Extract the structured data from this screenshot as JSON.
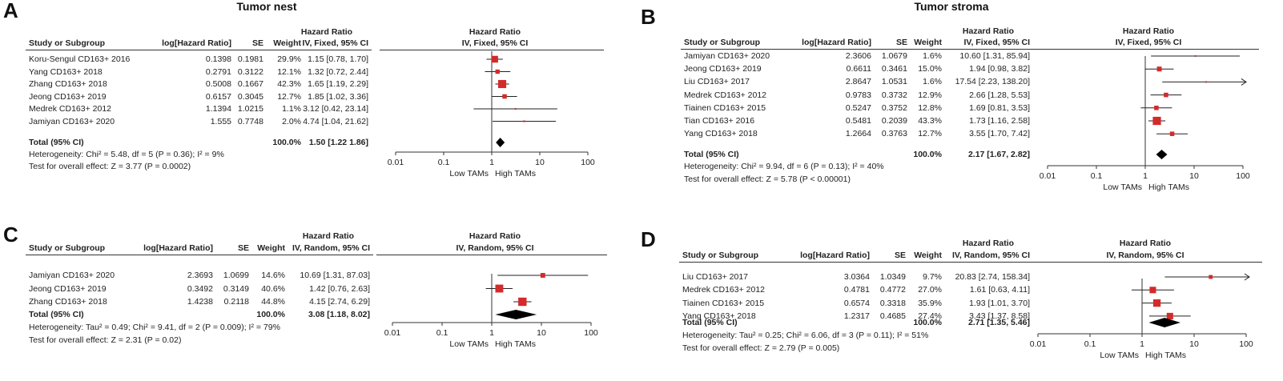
{
  "colors": {
    "box": "#d42a2a",
    "diamond": "#000000",
    "text": "#222222"
  },
  "chart_data": [
    {
      "id": "A",
      "letter": "A",
      "title": "Tumor nest",
      "type": "forest",
      "col_study": "Study or Subgroup",
      "col_loghr": "log[Hazard Ratio]",
      "col_se": "SE",
      "col_weight": "Weight",
      "col_hr_top": "Hazard Ratio",
      "col_hr_method": "IV, Fixed, 95% CI",
      "plot_title_top": "Hazard Ratio",
      "plot_title_method": "IV, Fixed, 95% CI",
      "studies": [
        {
          "name": "Koru-Sengul CD163+ 2016",
          "loghr": "0.1398",
          "se": "0.1981",
          "weight": "29.9%",
          "ci_text": "1.15 [0.78, 1.70]",
          "hr": 1.15,
          "lo": 0.78,
          "hi": 1.7,
          "w": 29.9
        },
        {
          "name": "Yang CD163+ 2018",
          "loghr": "0.2791",
          "se": "0.3122",
          "weight": "12.1%",
          "ci_text": "1.32 [0.72, 2.44]",
          "hr": 1.32,
          "lo": 0.72,
          "hi": 2.44,
          "w": 12.1
        },
        {
          "name": "Zhang CD163+ 2018",
          "loghr": "0.5008",
          "se": "0.1667",
          "weight": "42.3%",
          "ci_text": "1.65 [1.19, 2.29]",
          "hr": 1.65,
          "lo": 1.19,
          "hi": 2.29,
          "w": 42.3
        },
        {
          "name": "Jeong CD163+ 2019",
          "loghr": "0.6157",
          "se": "0.3045",
          "weight": "12.7%",
          "ci_text": "1.85 [1.02, 3.36]",
          "hr": 1.85,
          "lo": 1.02,
          "hi": 3.36,
          "w": 12.7
        },
        {
          "name": "Medrek CD163+ 2012",
          "loghr": "1.1394",
          "se": "1.0215",
          "weight": "1.1%",
          "ci_text": "3.12 [0.42, 23.14]",
          "hr": 3.12,
          "lo": 0.42,
          "hi": 23.14,
          "w": 1.1
        },
        {
          "name": "Jamiyan CD163+ 2020",
          "loghr": "1.555",
          "se": "0.7748",
          "weight": "2.0%",
          "ci_text": "4.74 [1.04, 21.62]",
          "hr": 4.74,
          "lo": 1.04,
          "hi": 21.62,
          "w": 2.0
        }
      ],
      "total": {
        "label": "Total (95% CI)",
        "weight": "100.0%",
        "ci_text": "1.50 [1.22 1.86]",
        "hr": 1.5,
        "lo": 1.22,
        "hi": 1.86
      },
      "heterogeneity": "Heterogeneity: Chi² = 5.48, df = 5 (P = 0.36); I² = 9%",
      "overall": "Test for overall effect: Z = 3.77 (P = 0.0002)",
      "axis": {
        "scale": "log",
        "ticks": [
          0.01,
          0.1,
          1,
          10,
          100
        ],
        "tick_labels": [
          "0.01",
          "0.1",
          "1",
          "10",
          "100"
        ],
        "label_left": "Low TAMs",
        "label_right": "High TAMs"
      }
    },
    {
      "id": "B",
      "letter": "B",
      "title": "Tumor stroma",
      "type": "forest",
      "col_study": "Study or Subgroup",
      "col_loghr": "log[Hazard Ratio]",
      "col_se": "SE",
      "col_weight": "Weight",
      "col_hr_top": "Hazard Ratio",
      "col_hr_method": "IV, Fixed, 95% CI",
      "plot_title_top": "Hazard Ratio",
      "plot_title_method": "IV, Fixed, 95% CI",
      "studies": [
        {
          "name": "Jamiyan CD163+ 2020",
          "loghr": "2.3606",
          "se": "1.0679",
          "weight": "1.6%",
          "ci_text": "10.60 [1.31, 85.94]",
          "hr": 10.6,
          "lo": 1.31,
          "hi": 85.94,
          "w": 1.6
        },
        {
          "name": "Jeong CD163+ 2019",
          "loghr": "0.6611",
          "se": "0.3461",
          "weight": "15.0%",
          "ci_text": "1.94 [0.98, 3.82]",
          "hr": 1.94,
          "lo": 0.98,
          "hi": 3.82,
          "w": 15.0
        },
        {
          "name": "Liu CD163+ 2017",
          "loghr": "2.8647",
          "se": "1.0531",
          "weight": "1.6%",
          "ci_text": "17.54 [2.23, 138.20]",
          "hr": 17.54,
          "lo": 2.23,
          "hi": 138.2,
          "w": 1.6
        },
        {
          "name": "Medrek CD163+ 2012",
          "loghr": "0.9783",
          "se": "0.3732",
          "weight": "12.9%",
          "ci_text": "2.66 [1.28, 5.53]",
          "hr": 2.66,
          "lo": 1.28,
          "hi": 5.53,
          "w": 12.9
        },
        {
          "name": "Tiainen CD163+ 2015",
          "loghr": "0.5247",
          "se": "0.3752",
          "weight": "12.8%",
          "ci_text": "1.69 [0.81, 3.53]",
          "hr": 1.69,
          "lo": 0.81,
          "hi": 3.53,
          "w": 12.8
        },
        {
          "name": "Tian CD163+ 2016",
          "loghr": "0.5481",
          "se": "0.2039",
          "weight": "43.3%",
          "ci_text": "1.73 [1.16, 2.58]",
          "hr": 1.73,
          "lo": 1.16,
          "hi": 2.58,
          "w": 43.3
        },
        {
          "name": "Yang CD163+ 2018",
          "loghr": "1.2664",
          "se": "0.3763",
          "weight": "12.7%",
          "ci_text": "3.55 [1.70, 7.42]",
          "hr": 3.55,
          "lo": 1.7,
          "hi": 7.42,
          "w": 12.7
        }
      ],
      "total": {
        "label": "Total (95% CI)",
        "weight": "100.0%",
        "ci_text": "2.17 [1.67, 2.82]",
        "hr": 2.17,
        "lo": 1.67,
        "hi": 2.82
      },
      "heterogeneity": "Heterogeneity: Chi² = 9.94, df = 6 (P = 0.13); I² = 40%",
      "overall": "Test for overall effect: Z = 5.78 (P < 0.00001)",
      "axis": {
        "scale": "log",
        "ticks": [
          0.01,
          0.1,
          1,
          10,
          100
        ],
        "tick_labels": [
          "0.01",
          "0.1",
          "1",
          "10",
          "100"
        ],
        "label_left": "Low TAMs",
        "label_right": "High TAMs"
      }
    },
    {
      "id": "C",
      "letter": "C",
      "title": "",
      "type": "forest",
      "col_study": "Study or Subgroup",
      "col_loghr": "log[Hazard Ratio]",
      "col_se": "SE",
      "col_weight": "Weight",
      "col_hr_top": "Hazard Ratio",
      "col_hr_method": "IV, Random, 95% CI",
      "plot_title_top": "Hazard Ratio",
      "plot_title_method": "IV, Random, 95% CI",
      "studies": [
        {
          "name": "Jamiyan CD163+ 2020",
          "loghr": "2.3693",
          "se": "1.0699",
          "weight": "14.6%",
          "ci_text": "10.69 [1.31, 87.03]",
          "hr": 10.69,
          "lo": 1.31,
          "hi": 87.03,
          "w": 14.6
        },
        {
          "name": "Jeong CD163+ 2019",
          "loghr": "0.3492",
          "se": "0.3149",
          "weight": "40.6%",
          "ci_text": "1.42 [0.76, 2.63]",
          "hr": 1.42,
          "lo": 0.76,
          "hi": 2.63,
          "w": 40.6
        },
        {
          "name": "Zhang CD163+ 2018",
          "loghr": "1.4238",
          "se": "0.2118",
          "weight": "44.8%",
          "ci_text": "4.15 [2.74, 6.29]",
          "hr": 4.15,
          "lo": 2.74,
          "hi": 6.29,
          "w": 44.8
        }
      ],
      "total": {
        "label": "Total (95% CI)",
        "weight": "100.0%",
        "ci_text": "3.08 [1.18, 8.02]",
        "hr": 3.08,
        "lo": 1.18,
        "hi": 8.02
      },
      "heterogeneity": "Heterogeneity: Tau² = 0.49; Chi² = 9.41, df = 2 (P = 0.009); I² = 79%",
      "overall": "Test for overall effect: Z = 2.31 (P = 0.02)",
      "axis": {
        "scale": "log",
        "ticks": [
          0.01,
          0.1,
          1,
          10,
          100
        ],
        "tick_labels": [
          "0.01",
          "0.1",
          "1",
          "10",
          "100"
        ],
        "label_left": "Low TAMs",
        "label_right": "High TAMs"
      }
    },
    {
      "id": "D",
      "letter": "D",
      "title": "",
      "type": "forest",
      "col_study": "Study or Subgroup",
      "col_loghr": "log[Hazard Ratio]",
      "col_se": "SE",
      "col_weight": "Weight",
      "col_hr_top": "Hazard Ratio",
      "col_hr_method": "IV, Random, 95% CI",
      "plot_title_top": "Hazard Ratio",
      "plot_title_method": "IV, Random, 95% CI",
      "studies": [
        {
          "name": "Liu CD163+ 2017",
          "loghr": "3.0364",
          "se": "1.0349",
          "weight": "9.7%",
          "ci_text": "20.83 [2.74, 158.34]",
          "hr": 20.83,
          "lo": 2.74,
          "hi": 158.34,
          "w": 9.7
        },
        {
          "name": "Medrek CD163+ 2012",
          "loghr": "0.4781",
          "se": "0.4772",
          "weight": "27.0%",
          "ci_text": "1.61 [0.63, 4.11]",
          "hr": 1.61,
          "lo": 0.63,
          "hi": 4.11,
          "w": 27.0
        },
        {
          "name": "Tiainen CD163+ 2015",
          "loghr": "0.6574",
          "se": "0.3318",
          "weight": "35.9%",
          "ci_text": "1.93 [1.01, 3.70]",
          "hr": 1.93,
          "lo": 1.01,
          "hi": 3.7,
          "w": 35.9
        },
        {
          "name": "Yang CD163+ 2018",
          "loghr": "1.2317",
          "se": "0.4685",
          "weight": "27.4%",
          "ci_text": "3.43 [1.37, 8.58]",
          "hr": 3.43,
          "lo": 1.37,
          "hi": 8.58,
          "w": 27.4
        }
      ],
      "total": {
        "label": "Total (95% CI)",
        "weight": "100.0%",
        "ci_text": "2.71 [1.35, 5.46]",
        "hr": 2.71,
        "lo": 1.35,
        "hi": 5.46
      },
      "heterogeneity": "Heterogeneity: Tau² = 0.25; Chi² = 6.06, df = 3 (P = 0.11); I² = 51%",
      "overall": "Test for overall effect: Z = 2.79 (P = 0.005)",
      "axis": {
        "scale": "log",
        "ticks": [
          0.01,
          0.1,
          1,
          10,
          100
        ],
        "tick_labels": [
          "0.01",
          "0.1",
          "1",
          "10",
          "100"
        ],
        "label_left": "Low TAMs",
        "label_right": "High TAMs"
      }
    }
  ]
}
